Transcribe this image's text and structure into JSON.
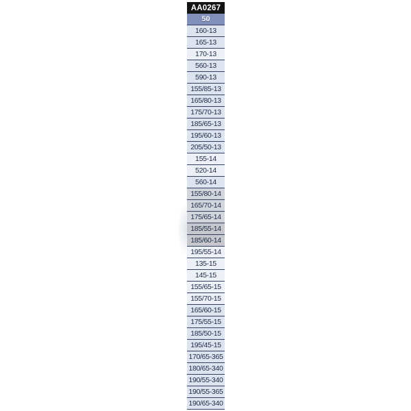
{
  "table": {
    "code_header": {
      "label": "AA0267",
      "bg": "#141414",
      "text_color": "#ffffff"
    },
    "size_header": {
      "label": "50",
      "bg": "#8090ba",
      "text_color": "#f3f5fa"
    },
    "row_text_color": "#212c48",
    "separator_color": "#344060",
    "shades": {
      "light": "#dde4f0",
      "white": "#edf0f6",
      "graylight": "#d3d6dc",
      "gray": "#c6c8cd"
    },
    "rows": [
      {
        "label": "160-13",
        "shade": "light"
      },
      {
        "label": "165-13",
        "shade": "light"
      },
      {
        "label": "170-13",
        "shade": "white"
      },
      {
        "label": "560-13",
        "shade": "light"
      },
      {
        "label": "590-13",
        "shade": "light"
      },
      {
        "label": "155/85-13",
        "shade": "light"
      },
      {
        "label": "165/80-13",
        "shade": "light"
      },
      {
        "label": "175/70-13",
        "shade": "light"
      },
      {
        "label": "185/65-13",
        "shade": "light"
      },
      {
        "label": "195/60-13",
        "shade": "light"
      },
      {
        "label": "205/50-13",
        "shade": "light"
      },
      {
        "label": "155-14",
        "shade": "white"
      },
      {
        "label": "520-14",
        "shade": "white"
      },
      {
        "label": "560-14",
        "shade": "light"
      },
      {
        "label": "155/80-14",
        "shade": "graylight"
      },
      {
        "label": "165/70-14",
        "shade": "graylight"
      },
      {
        "label": "175/65-14",
        "shade": "graylight"
      },
      {
        "label": "185/55-14",
        "shade": "gray"
      },
      {
        "label": "185/60-14",
        "shade": "gray"
      },
      {
        "label": "195/55-14",
        "shade": "white"
      },
      {
        "label": "135-15",
        "shade": "white"
      },
      {
        "label": "145-15",
        "shade": "white"
      },
      {
        "label": "155/65-15",
        "shade": "white"
      },
      {
        "label": "155/70-15",
        "shade": "white"
      },
      {
        "label": "165/60-15",
        "shade": "light"
      },
      {
        "label": "175/55-15",
        "shade": "light"
      },
      {
        "label": "185/50-15",
        "shade": "light"
      },
      {
        "label": "195/45-15",
        "shade": "light"
      },
      {
        "label": "170/65-365",
        "shade": "light"
      },
      {
        "label": "180/65-340",
        "shade": "light"
      },
      {
        "label": "190/55-340",
        "shade": "light"
      },
      {
        "label": "190/55-365",
        "shade": "light"
      },
      {
        "label": "190/65-340",
        "shade": "light"
      }
    ]
  }
}
